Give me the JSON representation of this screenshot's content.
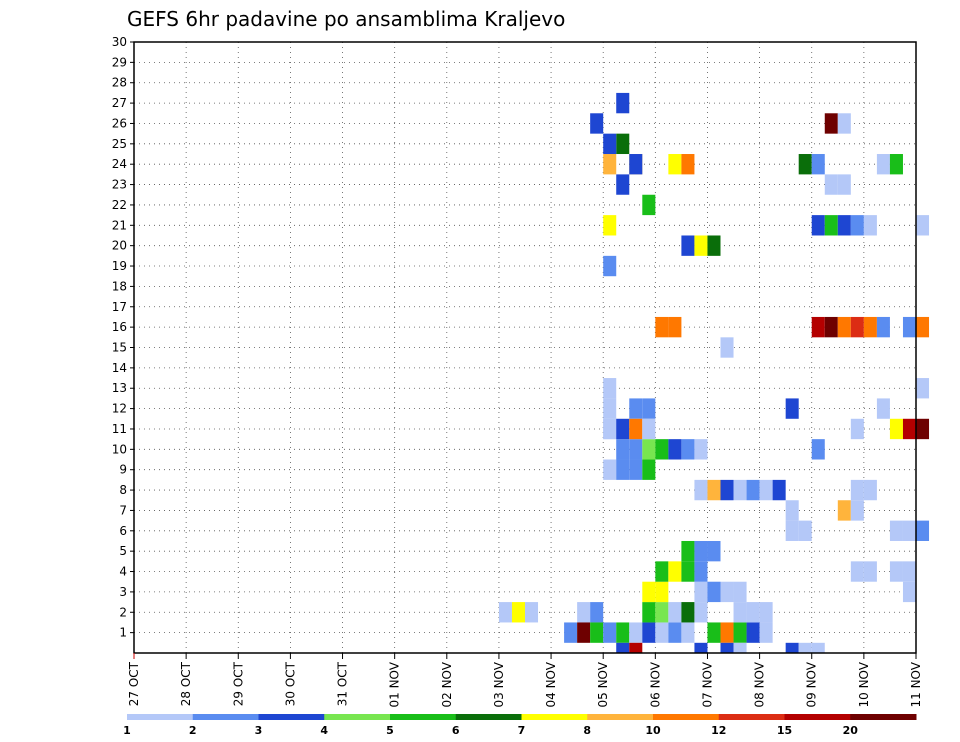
{
  "chart_data": {
    "type": "heatmap",
    "title": "GEFS 6hr padavine po ansamblima Kraljevo",
    "x_tick_labels": [
      "27 OCT",
      "28 OCT",
      "29 OCT",
      "30 OCT",
      "31 OCT",
      "01 NOV",
      "02 NOV",
      "03 NOV",
      "04 NOV",
      "05 NOV",
      "06 NOV",
      "07 NOV",
      "08 NOV",
      "09 NOV",
      "10 NOV",
      "11 NOV"
    ],
    "y_members": [
      1,
      2,
      3,
      4,
      5,
      6,
      7,
      8,
      9,
      10,
      11,
      12,
      13,
      14,
      15,
      16,
      17,
      18,
      19,
      20,
      21,
      22,
      23,
      24,
      25,
      26,
      27,
      28,
      29,
      30
    ],
    "y_range": [
      0,
      30
    ],
    "x_range_days": [
      0,
      15
    ],
    "steps_per_day": 4,
    "grid": "dotted",
    "legend": {
      "placement": "bottom",
      "tick_labels": [
        "1",
        "2",
        "3",
        "4",
        "5",
        "6",
        "7",
        "8",
        "10",
        "12",
        "15",
        "20"
      ],
      "colors": [
        "#b4c8f8",
        "#5a8cf0",
        "#1e46d2",
        "#78e650",
        "#19be19",
        "#0a6e0a",
        "#ffff00",
        "#ffb43c",
        "#ff7800",
        "#dc2d14",
        "#b40000",
        "#6e0000"
      ]
    },
    "cells": [
      [
        9.25,
        27,
        3
      ],
      [
        9.25,
        25,
        6
      ],
      [
        9.0,
        24,
        8
      ],
      [
        9.5,
        24,
        8
      ],
      [
        9.75,
        22,
        5
      ],
      [
        9.0,
        21,
        7
      ],
      [
        9.25,
        23,
        3
      ],
      [
        9.5,
        24,
        3
      ],
      [
        9.25,
        10,
        2
      ],
      [
        9.5,
        10,
        2
      ],
      [
        9.75,
        10,
        4
      ],
      [
        9.0,
        9,
        1
      ],
      [
        9.25,
        9,
        2
      ],
      [
        9.5,
        9,
        2
      ],
      [
        9.75,
        9,
        5
      ],
      [
        9.5,
        12,
        2
      ],
      [
        9.75,
        12,
        2
      ],
      [
        7.0,
        2,
        1
      ],
      [
        7.25,
        2,
        7
      ],
      [
        7.5,
        2,
        1
      ],
      [
        8.5,
        2,
        1
      ],
      [
        8.75,
        2,
        2
      ],
      [
        8.75,
        26,
        3
      ],
      [
        9.0,
        25,
        3
      ],
      [
        9.0,
        19,
        2
      ],
      [
        9.0,
        12,
        1
      ],
      [
        9.0,
        11,
        1
      ],
      [
        8.25,
        1,
        2
      ],
      [
        8.5,
        1,
        12
      ],
      [
        8.75,
        1,
        5
      ],
      [
        9.0,
        1,
        2
      ],
      [
        9.25,
        1,
        5
      ],
      [
        9.5,
        1,
        1
      ],
      [
        9.75,
        1,
        3
      ],
      [
        10.0,
        1,
        1
      ],
      [
        10.25,
        1,
        2
      ],
      [
        10.5,
        1,
        1
      ],
      [
        9.75,
        2,
        5
      ],
      [
        10.0,
        2,
        4
      ],
      [
        10.25,
        2,
        1
      ],
      [
        10.5,
        2,
        6
      ],
      [
        10.75,
        2,
        1
      ],
      [
        9.75,
        3,
        7
      ],
      [
        10.0,
        3,
        7
      ],
      [
        10.75,
        3,
        1
      ],
      [
        11.0,
        3,
        2
      ],
      [
        11.25,
        3,
        1
      ],
      [
        11.5,
        3,
        1
      ],
      [
        10.0,
        4,
        5
      ],
      [
        10.25,
        4,
        7
      ],
      [
        10.5,
        4,
        5
      ],
      [
        10.75,
        4,
        2
      ],
      [
        10.5,
        5,
        5
      ],
      [
        10.75,
        5,
        2
      ],
      [
        11.0,
        5,
        2
      ],
      [
        10.75,
        8,
        1
      ],
      [
        11.0,
        8,
        8
      ],
      [
        11.25,
        8,
        3
      ],
      [
        11.5,
        8,
        1
      ],
      [
        11.75,
        8,
        2
      ],
      [
        12.0,
        8,
        1
      ],
      [
        12.25,
        8,
        3
      ],
      [
        10.0,
        10,
        5
      ],
      [
        10.25,
        10,
        3
      ],
      [
        10.5,
        10,
        2
      ],
      [
        10.75,
        10,
        1
      ],
      [
        10.0,
        16,
        9
      ],
      [
        10.25,
        16,
        9
      ],
      [
        10.5,
        20,
        3
      ],
      [
        10.75,
        20,
        7
      ],
      [
        11.0,
        20,
        6
      ],
      [
        10.25,
        24,
        7
      ],
      [
        10.5,
        24,
        9
      ],
      [
        11.25,
        15,
        1
      ],
      [
        9.0,
        13,
        1
      ],
      [
        9.0,
        11,
        1
      ],
      [
        9.25,
        11,
        3
      ],
      [
        9.5,
        11,
        9
      ],
      [
        9.75,
        11,
        1
      ],
      [
        11.0,
        1,
        5
      ],
      [
        11.25,
        1,
        9
      ],
      [
        11.5,
        1,
        5
      ],
      [
        11.75,
        1,
        3
      ],
      [
        12.0,
        1,
        1
      ],
      [
        12.5,
        6,
        1
      ],
      [
        12.75,
        6,
        1
      ],
      [
        12.5,
        7,
        1
      ],
      [
        12.75,
        24,
        6
      ],
      [
        13.0,
        24,
        2
      ],
      [
        12.5,
        12,
        3
      ],
      [
        13.0,
        10,
        2
      ],
      [
        13.0,
        21,
        3
      ],
      [
        13.25,
        21,
        5
      ],
      [
        13.5,
        21,
        3
      ],
      [
        13.75,
        21,
        2
      ],
      [
        14.0,
        21,
        1
      ],
      [
        13.0,
        16,
        11
      ],
      [
        13.25,
        16,
        12
      ],
      [
        13.5,
        16,
        9
      ],
      [
        13.75,
        16,
        10
      ],
      [
        14.0,
        16,
        9
      ],
      [
        14.25,
        16,
        2
      ],
      [
        13.25,
        26,
        12
      ],
      [
        13.5,
        26,
        1
      ],
      [
        13.25,
        23,
        1
      ],
      [
        13.5,
        23,
        1
      ],
      [
        13.5,
        7,
        8
      ],
      [
        13.75,
        7,
        1
      ],
      [
        13.75,
        8,
        1
      ],
      [
        14.0,
        8,
        1
      ],
      [
        13.75,
        4,
        1
      ],
      [
        14.0,
        4,
        1
      ],
      [
        13.75,
        11,
        1
      ],
      [
        14.25,
        12,
        1
      ],
      [
        14.25,
        24,
        1
      ],
      [
        14.5,
        24,
        5
      ],
      [
        14.5,
        11,
        7
      ],
      [
        14.75,
        11,
        11
      ],
      [
        15.0,
        11,
        12
      ],
      [
        14.5,
        6,
        1
      ],
      [
        14.75,
        6,
        1
      ],
      [
        15.0,
        6,
        2
      ],
      [
        14.5,
        4,
        1
      ],
      [
        14.75,
        4,
        1
      ],
      [
        14.75,
        3,
        1
      ],
      [
        14.75,
        16,
        2
      ],
      [
        15.0,
        16,
        9
      ],
      [
        15.0,
        21,
        1
      ],
      [
        15.0,
        13,
        1
      ],
      [
        11.5,
        2,
        1
      ],
      [
        11.75,
        2,
        1
      ],
      [
        12.0,
        2,
        1
      ]
    ],
    "bottom_row_cells": [
      [
        9.25,
        3
      ],
      [
        9.5,
        11
      ],
      [
        10.75,
        3
      ],
      [
        11.25,
        3
      ],
      [
        11.5,
        1
      ],
      [
        12.5,
        3
      ],
      [
        12.75,
        1
      ],
      [
        13.0,
        1
      ]
    ]
  }
}
